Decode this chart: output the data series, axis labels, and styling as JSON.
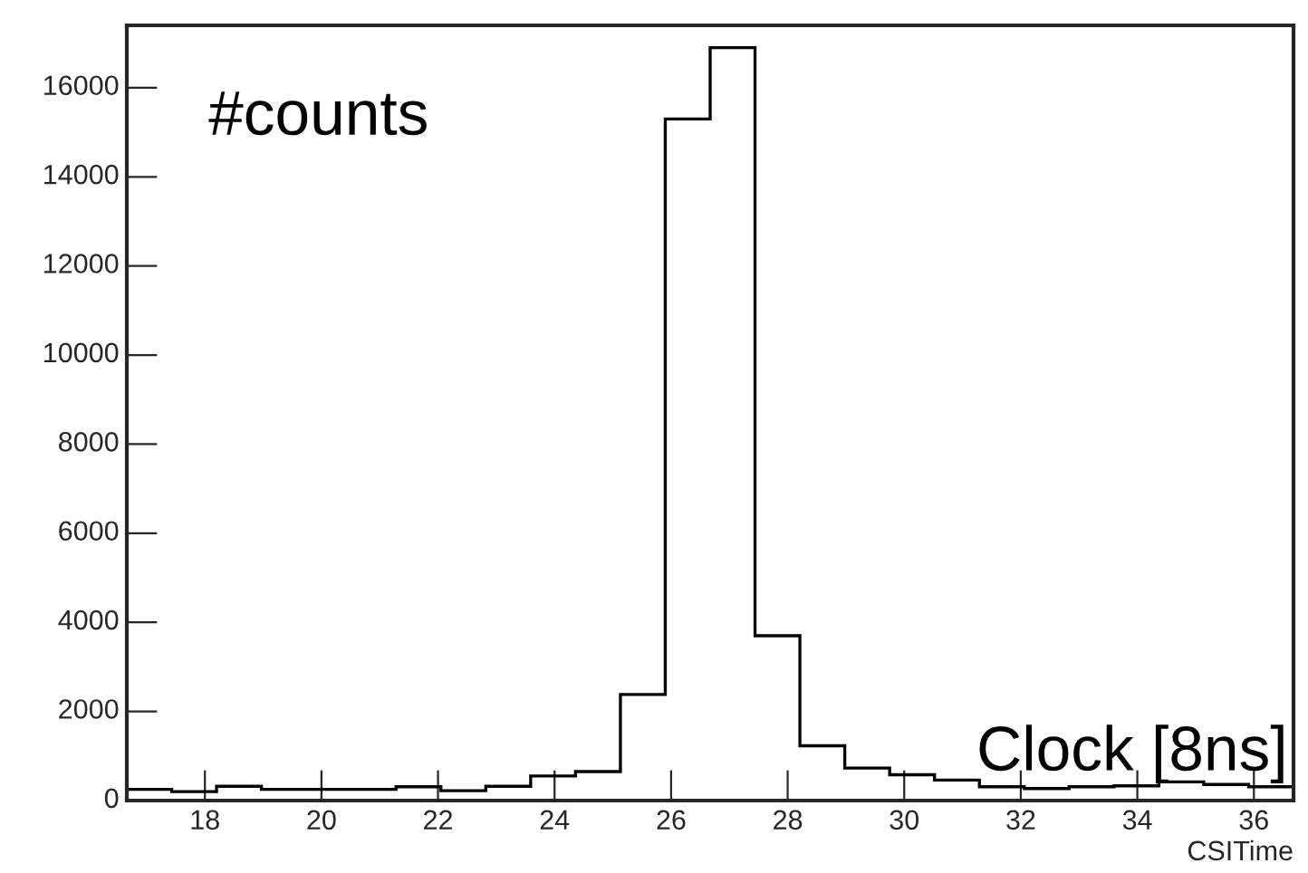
{
  "chart_data": {
    "type": "histogram",
    "xlabel": "CSITime",
    "annotations": [
      "#counts",
      "Clock [8ns]"
    ],
    "bins": [
      16.66,
      17.43,
      18.2,
      18.97,
      19.74,
      20.51,
      21.28,
      22.05,
      22.82,
      23.59,
      24.36,
      25.13,
      25.9,
      26.67,
      27.44,
      28.21,
      28.98,
      29.75,
      30.52,
      31.29,
      32.06,
      32.83,
      33.6,
      34.37,
      35.14,
      35.91,
      36.68
    ],
    "values": [
      250,
      200,
      320,
      250,
      250,
      250,
      310,
      220,
      320,
      550,
      650,
      2380,
      15300,
      16900,
      3700,
      1230,
      730,
      580,
      460,
      310,
      270,
      310,
      330,
      420,
      360,
      310
    ],
    "color": "#000000",
    "xlim": [
      16.66,
      36.68
    ],
    "xticks": [
      18,
      20,
      22,
      24,
      26,
      28,
      30,
      32,
      34,
      36
    ],
    "ylim": [
      0,
      17400
    ],
    "yticks": [
      0,
      2000,
      4000,
      6000,
      8000,
      10000,
      12000,
      14000,
      16000
    ],
    "grid": false,
    "legend": false
  }
}
